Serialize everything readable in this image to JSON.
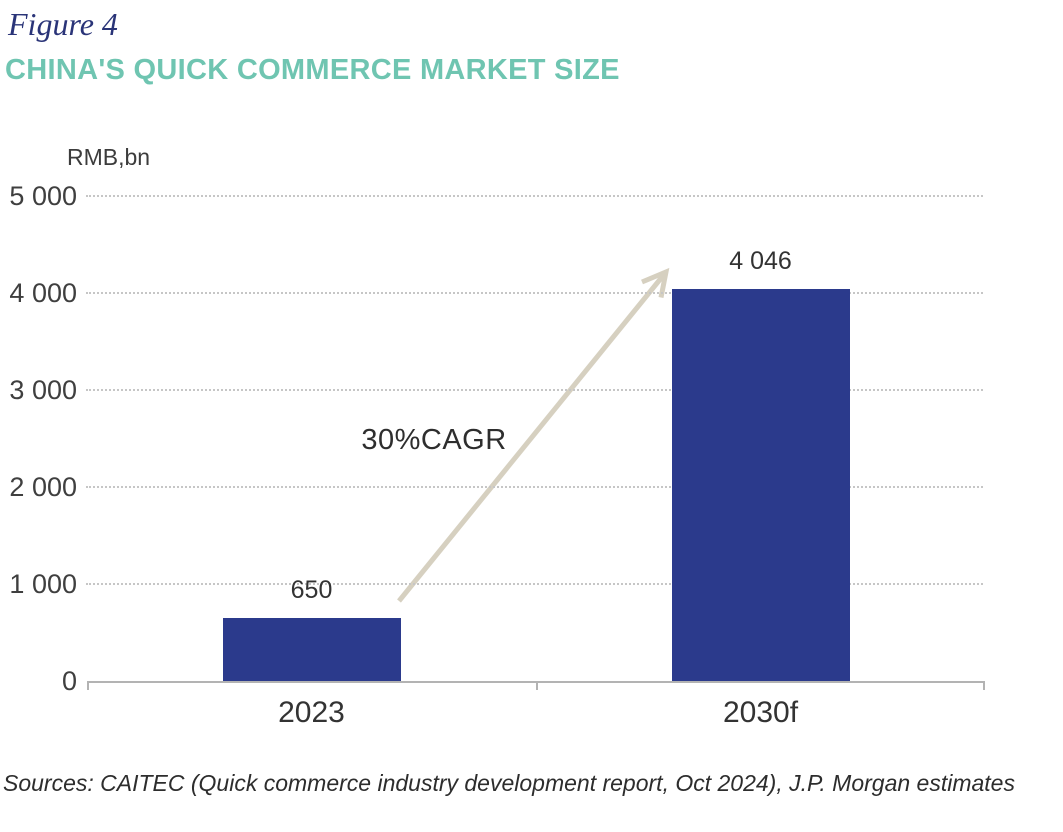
{
  "figure": {
    "label": "Figure 4"
  },
  "title": "CHINA'S QUICK COMMERCE MARKET SIZE",
  "chart_data": {
    "type": "bar",
    "title": "CHINA'S QUICK COMMERCE MARKET SIZE",
    "ylabel": "RMB,bn",
    "xlabel": "",
    "categories": [
      "2023",
      "2030f"
    ],
    "values": [
      650,
      4046
    ],
    "value_labels": [
      "650",
      "4 046"
    ],
    "ylim": [
      0,
      5000
    ],
    "yticks": [
      0,
      1000,
      2000,
      3000,
      4000,
      5000
    ],
    "ytick_labels": [
      "0",
      "1 000",
      "2 000",
      "3 000",
      "4 000",
      "5 000"
    ],
    "grid": "horizontal-dotted",
    "legend": "none",
    "annotation": {
      "text": "30%CAGR",
      "arrow_from_category": "2023",
      "arrow_to_category": "2030f"
    }
  },
  "source_note": "Sources: CAITEC (Quick commerce industry development report, Oct 2024), J.P. Morgan estimates",
  "colors": {
    "figure_label": "#2a3478",
    "title": "#6fc5b1",
    "bar": "#2b3a8c",
    "arrow": "#d6d0c0",
    "text": "#3c3c3c",
    "gridline": "#c6c6c6",
    "axis_line": "#b3b3b3"
  }
}
